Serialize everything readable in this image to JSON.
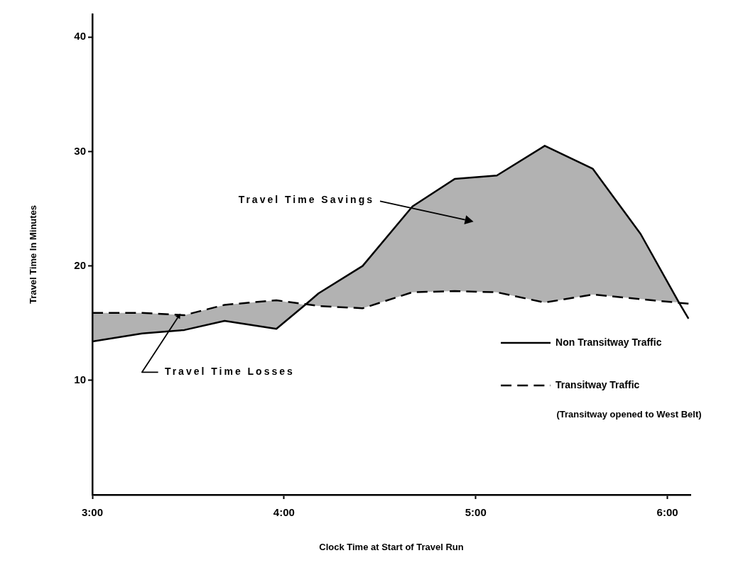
{
  "chart_data": {
    "type": "line",
    "xlabel": "Clock Time at Start of Travel Run",
    "ylabel": "Travel Time In Minutes",
    "x": [
      3.0,
      3.26,
      3.48,
      3.69,
      3.96,
      4.18,
      4.41,
      4.67,
      4.89,
      5.11,
      5.36,
      5.61,
      5.86,
      6.11
    ],
    "series": [
      {
        "name": "Non Transitway Traffic",
        "color": "#000000",
        "line_style": "solid",
        "x": [
          3.0,
          3.26,
          3.48,
          3.69,
          3.96,
          4.11,
          4.18,
          4.41,
          4.67,
          4.89,
          5.11,
          5.36,
          5.61,
          5.86,
          6.06,
          6.11
        ],
        "values": [
          13.4,
          14.1,
          14.4,
          15.2,
          14.5,
          16.6,
          17.6,
          20.0,
          25.2,
          27.6,
          27.9,
          30.5,
          28.5,
          22.8,
          16.8,
          15.4
        ],
        "lower": [
          13.4,
          14.1,
          14.4,
          15.2,
          14.5,
          16.6,
          16.5,
          16.3,
          17.7,
          17.8,
          17.7,
          16.8,
          17.5,
          17.1,
          16.8,
          null
        ],
        "upper": [
          15.9,
          15.9,
          15.7,
          16.6,
          17.0,
          16.6,
          17.6,
          20.0,
          25.2,
          27.6,
          27.9,
          30.5,
          28.5,
          22.8,
          16.8,
          null
        ]
      },
      {
        "name": "Transitway Traffic",
        "color": "#000000",
        "line_style": "dashed",
        "values": [
          15.9,
          15.9,
          15.7,
          16.6,
          17.0,
          16.5,
          16.3,
          17.7,
          17.8,
          17.7,
          16.8,
          17.5,
          17.1,
          16.7
        ]
      }
    ],
    "xlim": [
      3,
      6.12
    ],
    "xticks": [
      {
        "value": 3,
        "label": "3:00"
      },
      {
        "value": 4,
        "label": "4:00"
      },
      {
        "value": 5,
        "label": "5:00"
      },
      {
        "value": 6,
        "label": "6:00"
      }
    ],
    "ylim": [
      0,
      42
    ],
    "yticks": [
      10,
      20,
      30,
      40
    ],
    "grid": false,
    "legend": "right",
    "annotations": [
      "Travel Time Savings",
      {
        "text": "Travel Time Losses",
        "x": 3.45,
        "y": 15.6
      },
      "(Transitway opened to West Belt)"
    ]
  }
}
